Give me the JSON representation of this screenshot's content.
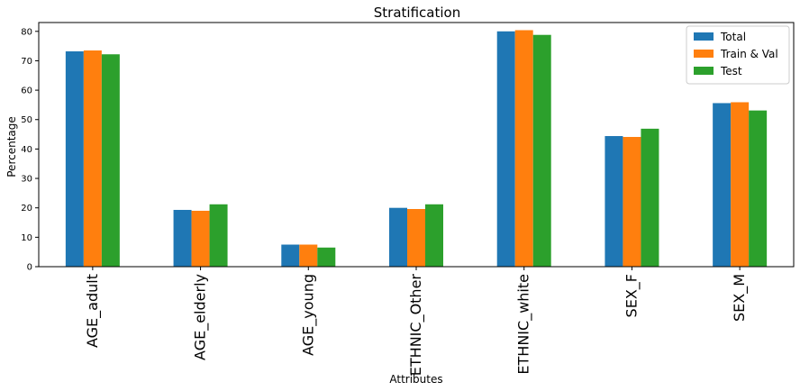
{
  "chart_data": {
    "type": "bar",
    "title": "Stratification",
    "xlabel": "Attributes",
    "ylabel": "Percentage",
    "categories": [
      "AGE_adult",
      "AGE_elderly",
      "AGE_young",
      "ETHNIC_Other",
      "ETHNIC_white",
      "SEX_F",
      "SEX_M"
    ],
    "series": [
      {
        "name": "Total",
        "color": "#1f77b4",
        "values": [
          73.2,
          19.3,
          7.5,
          20.0,
          80.0,
          44.4,
          55.6
        ]
      },
      {
        "name": "Train & Val",
        "color": "#ff7f0e",
        "values": [
          73.5,
          19.0,
          7.5,
          19.6,
          80.4,
          44.1,
          55.9
        ]
      },
      {
        "name": "Test",
        "color": "#2ca02c",
        "values": [
          72.2,
          21.2,
          6.5,
          21.2,
          78.8,
          46.9,
          53.1
        ]
      }
    ],
    "ylim": [
      0,
      83
    ],
    "yticks": [
      0,
      10,
      20,
      30,
      40,
      50,
      60,
      70,
      80
    ],
    "grid": false,
    "legend_position": "top-right"
  }
}
